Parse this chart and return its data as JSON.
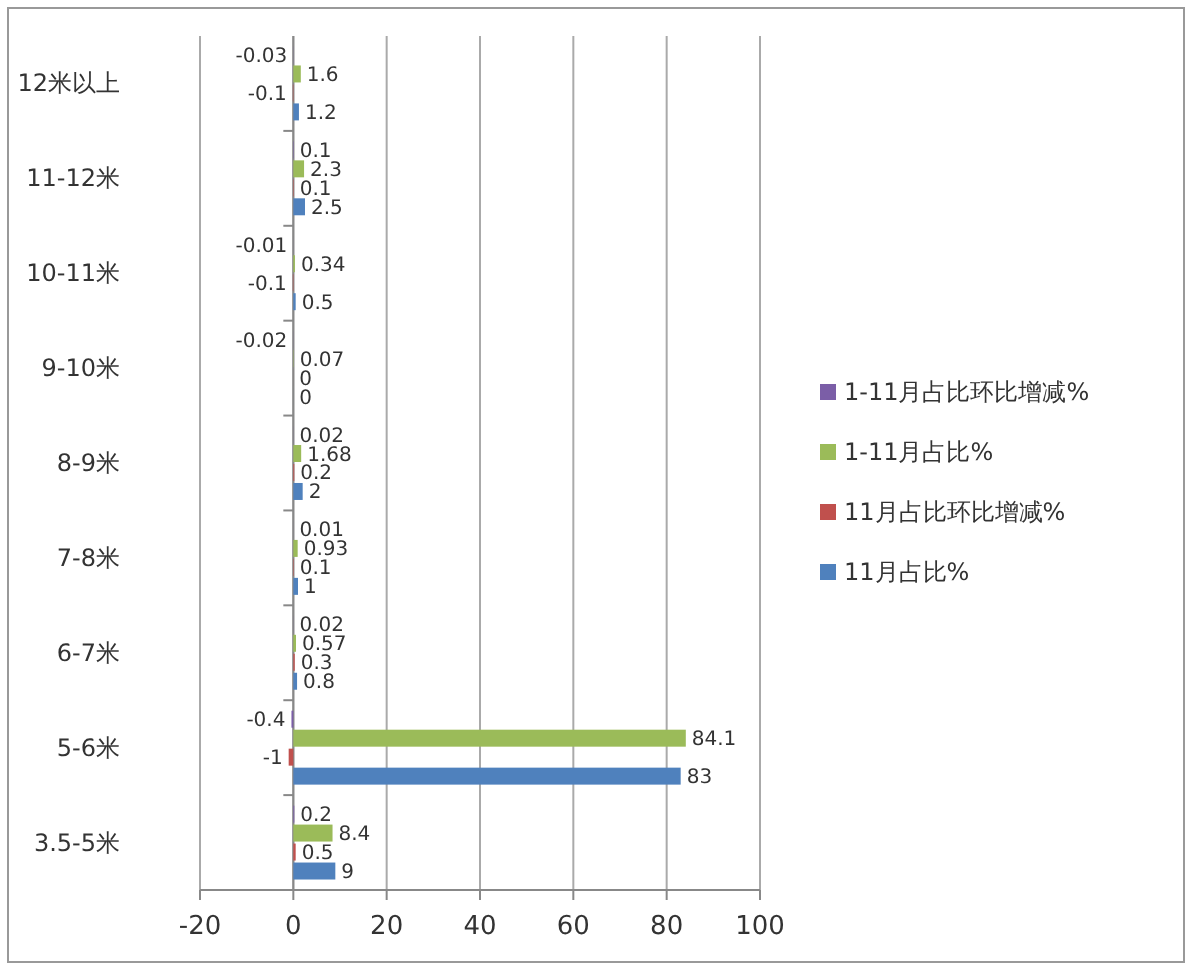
{
  "chart_data": {
    "type": "bar",
    "orientation": "horizontal",
    "categories": [
      "12米以上",
      "11-12米",
      "10-11米",
      "9-10米",
      "8-9米",
      "7-8米",
      "6-7米",
      "5-6米",
      "3.5-5米"
    ],
    "series": [
      {
        "name": "1-11月占比环比增减%",
        "color": "#7b5ea7",
        "values": [
          -0.03,
          0.1,
          -0.01,
          -0.02,
          0.02,
          0.01,
          0.02,
          -0.4,
          0.2
        ]
      },
      {
        "name": "1-11月占比%",
        "color": "#9bbb59",
        "values": [
          1.6,
          2.3,
          0.34,
          0.07,
          1.68,
          0.93,
          0.57,
          84.1,
          8.4
        ]
      },
      {
        "name": "11月占比环比增减%",
        "color": "#c0504d",
        "values": [
          -0.1,
          0.1,
          -0.1,
          0,
          0.2,
          0.1,
          0.3,
          -1,
          0.5
        ]
      },
      {
        "name": "11月占比%",
        "color": "#4f81bd",
        "values": [
          1.2,
          2.5,
          0.5,
          0,
          2,
          1,
          0.8,
          83,
          9
        ]
      }
    ],
    "xlim": [
      -20,
      100
    ],
    "xticks": [
      -20,
      0,
      20,
      40,
      60,
      80,
      100
    ],
    "grid": "x",
    "legend": "right",
    "data_labels": true
  }
}
